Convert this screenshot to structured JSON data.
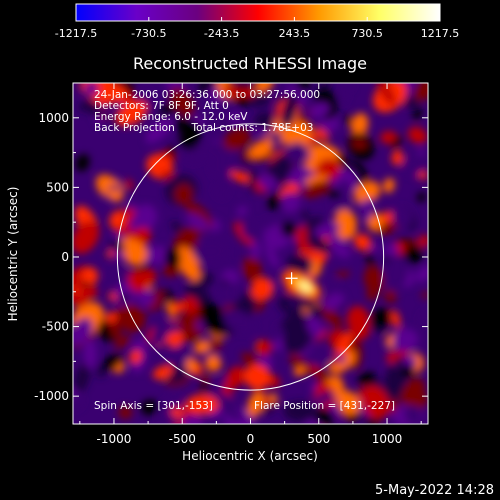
{
  "chart_data": {
    "type": "heatmap",
    "title": "Reconstructed RHESSI Image",
    "xlabel": "Heliocentric X (arcsec)",
    "ylabel": "Heliocentric Y (arcsec)",
    "xlim": [
      -1300,
      1300
    ],
    "ylim": [
      -1200,
      1250
    ],
    "xticks": [
      -1000,
      -500,
      0,
      500,
      1000
    ],
    "yticks": [
      -1000,
      -500,
      0,
      500,
      1000
    ],
    "colorbar": {
      "min": -1217.5,
      "max": 1217.5,
      "tick_values": [
        -1217.5,
        -730.5,
        -243.5,
        243.5,
        730.5,
        1217.5
      ],
      "tick_labels": [
        "-1217.5",
        "-730.5",
        "-243.5",
        "243.5",
        "730.5",
        "1217.5"
      ],
      "colors": [
        "#0000ff",
        "#6a00c8",
        "#6b0080",
        "#ff0000",
        "#ff9900",
        "#ffff66",
        "#ffffff"
      ]
    },
    "info_lines": [
      "24-Jan-2006 03:26:36.000 to 03:27:56.000",
      "Detectors: 7F 8F 9F, Att 0",
      "Energy Range: 6.0 - 12.0 keV",
      "Back Projection     Total counts: 1.78E+03"
    ],
    "footer_left": "Spin Axis = [301,-153]",
    "footer_right": "Flare Position = [431,-227]",
    "spin_axis": [
      301,
      -153
    ],
    "flare_position": [
      431,
      -227
    ],
    "solar_limb_radius_arcsec": 975,
    "grid": false
  },
  "timestamp": "5-May-2022 14:28"
}
